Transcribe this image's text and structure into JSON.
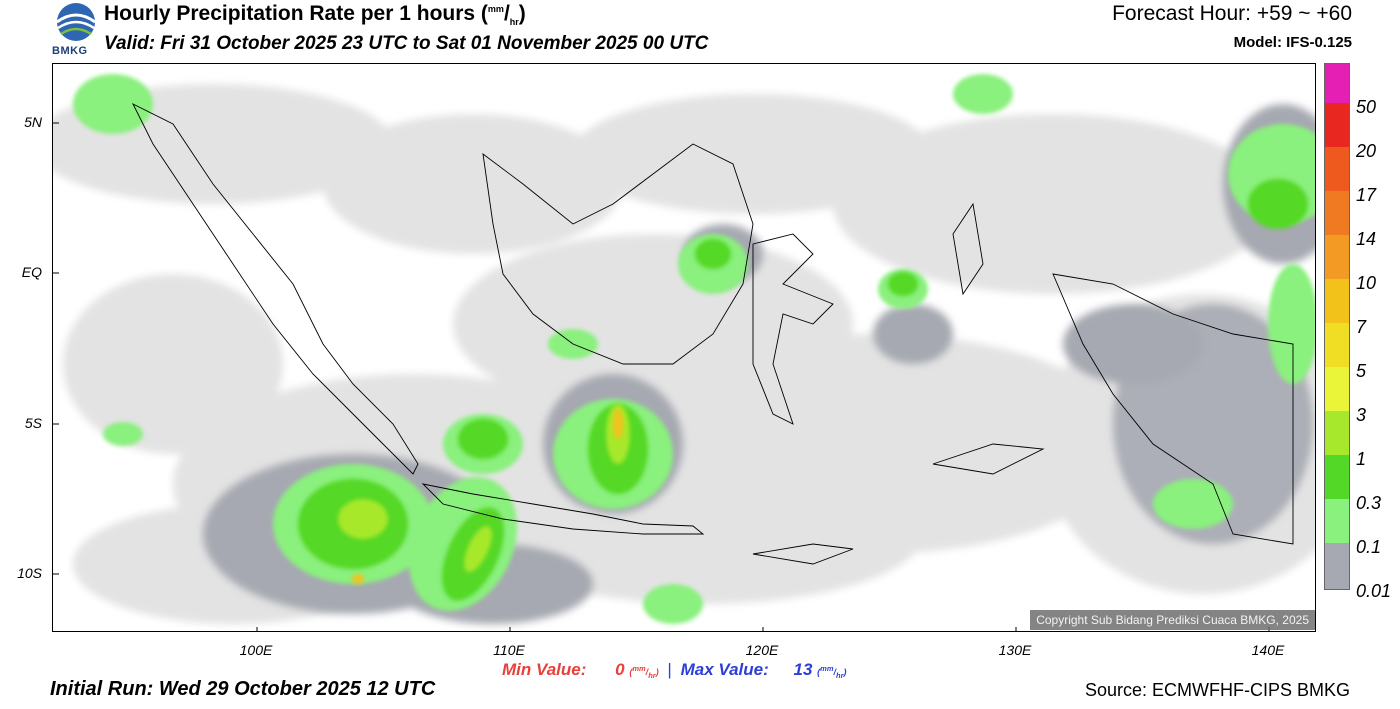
{
  "header": {
    "logo_text": "BMKG",
    "title": "Hourly Precipitation Rate per 1 hours",
    "title_unit_top": "mm",
    "title_unit_bottom": "hr",
    "valid": "Valid: Fri 31 October 2025 23 UTC to Sat 01 November 2025 00 UTC",
    "forecast_hour": "Forecast Hour: +59 ~ +60",
    "model": "Model: IFS-0.125"
  },
  "map": {
    "lat_labels": [
      "5N",
      "EQ",
      "5S",
      "10S"
    ],
    "lon_labels": [
      "100E",
      "110E",
      "120E",
      "130E",
      "140E"
    ],
    "copyright": "Copyright Sub Bidang Prediksi Cuaca BMKG, 2025"
  },
  "legend": {
    "labels": [
      "50",
      "20",
      "17",
      "14",
      "10",
      "7",
      "5",
      "3",
      "1",
      "0.3",
      "0.1",
      "0.01"
    ],
    "colors": [
      "#e61fb4",
      "#e82820",
      "#ee5a1e",
      "#f07a22",
      "#f29a24",
      "#f2c21a",
      "#efde24",
      "#eaf53a",
      "#a8e82c",
      "#54d827",
      "#8af07e",
      "#a6a9b1",
      "#e3e3e3"
    ]
  },
  "footer": {
    "min_label": "Min Value:",
    "min_value": "0",
    "max_label": "Max Value:",
    "max_value": "13",
    "unit_top": "mm",
    "unit_bottom": "hr",
    "initial_run": "Initial Run: Wed 29 October 2025 12 UTC",
    "source": "Source: ECMWFHF-CIPS BMKG"
  }
}
